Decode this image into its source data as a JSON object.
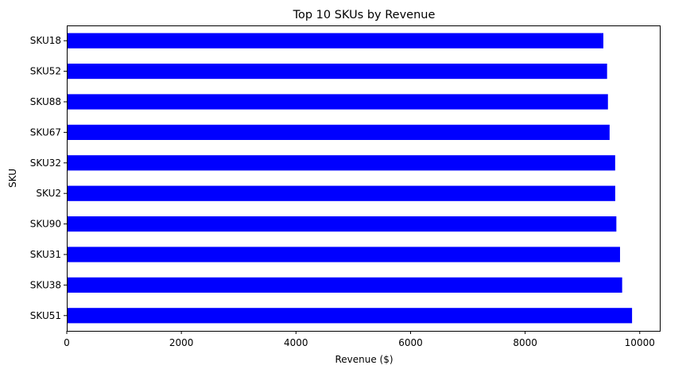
{
  "chart_data": {
    "type": "bar",
    "orientation": "horizontal",
    "title": "Top 10 SKUs by Revenue",
    "xlabel": "Revenue ($)",
    "ylabel": "SKU",
    "categories": [
      "SKU51",
      "SKU38",
      "SKU31",
      "SKU90",
      "SKU2",
      "SKU32",
      "SKU67",
      "SKU88",
      "SKU52",
      "SKU18"
    ],
    "values": [
      9866,
      9693,
      9656,
      9592,
      9572,
      9571,
      9474,
      9445,
      9430,
      9365
    ],
    "xlim": [
      0,
      10350
    ],
    "xticks": [
      0,
      2000,
      4000,
      6000,
      8000,
      10000
    ],
    "grid": false,
    "legend": "none",
    "bar_color": "#0000ff",
    "category_order": "bottom-to-top"
  }
}
